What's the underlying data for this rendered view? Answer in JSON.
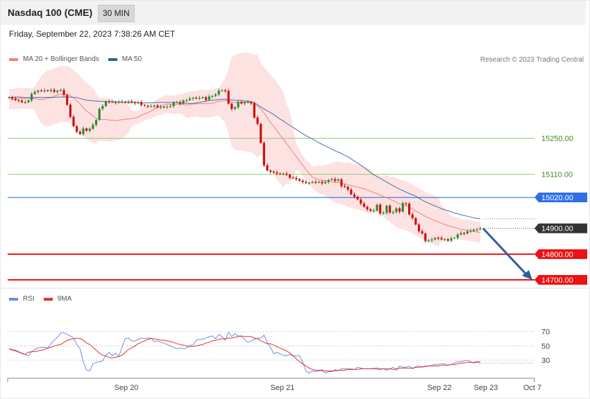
{
  "header": {
    "title": "Nasdaq 100 (CME)",
    "timeframe": "30 MIN"
  },
  "datetime": "Friday, September 22, 2023 7:38:26 AM CET",
  "legend": {
    "ma20": "MA 20 + Bollinger Bands",
    "ma50": "MA 50",
    "credit": "Research © 2023 Trading Central"
  },
  "rsi_legend": {
    "rsi": "RSI",
    "ma": "9MA"
  },
  "colors": {
    "bull": "#2e8b2e",
    "bear": "#cc1111",
    "band_fill": "#fde2e2",
    "ma20": "#f08080",
    "ma50": "#4a6ea9",
    "green_level": "#8ccc6c",
    "blue_level": "#2e6fe8",
    "red_level": "#ee1111",
    "dark_label": "#333333",
    "arrow": "#2e5d9f",
    "rsi": "#6b8fe0",
    "rsi_ma": "#e63030"
  },
  "chart_data": [
    {
      "type": "candlestick",
      "title": "Nasdaq 100 (CME)",
      "ylim": [
        14700,
        15650
      ],
      "x_ticks": [
        "Sep 20",
        "Sep 21",
        "Sep 22",
        "Sep 23",
        "Oct 7"
      ],
      "levels": [
        {
          "label": "15250.00",
          "value": 15250,
          "style": "green-line"
        },
        {
          "label": "15110.00",
          "value": 15110,
          "style": "green-line"
        },
        {
          "label": "15020.00",
          "value": 15020,
          "style": "blue-box"
        },
        {
          "label": "14900.00",
          "value": 14900,
          "style": "dark-box"
        },
        {
          "label": "14800.00",
          "value": 14800,
          "style": "red-box"
        },
        {
          "label": "14700.00",
          "value": 14700,
          "style": "red-box"
        }
      ],
      "close": [
        15409,
        15404,
        15398,
        15396,
        15390,
        15390,
        15397,
        15422,
        15430,
        15435,
        15434,
        15436,
        15434,
        15438,
        15430,
        15435,
        15437,
        15418,
        15380,
        15333,
        15297,
        15275,
        15266,
        15288,
        15279,
        15287,
        15302,
        15321,
        15364,
        15375,
        15393,
        15391,
        15391,
        15388,
        15392,
        15392,
        15390,
        15393,
        15390,
        15386,
        15390,
        15379,
        15376,
        15374,
        15374,
        15377,
        15370,
        15372,
        15371,
        15373,
        15375,
        15390,
        15390,
        15384,
        15397,
        15398,
        15404,
        15407,
        15405,
        15407,
        15409,
        15399,
        15412,
        15414,
        15420,
        15435,
        15436,
        15434,
        15384,
        15364,
        15370,
        15391,
        15385,
        15389,
        15391,
        15386,
        15330,
        15306,
        15232,
        15145,
        15125,
        15120,
        15117,
        15113,
        15112,
        15112,
        15108,
        15097,
        15096,
        15091,
        15085,
        15080,
        15076,
        15077,
        15080,
        15079,
        15081,
        15075,
        15080,
        15088,
        15091,
        15085,
        15090,
        15064,
        15061,
        15051,
        15032,
        15023,
        15012,
        14996,
        14984,
        14974,
        14968,
        14969,
        14992,
        14958,
        14960,
        14988,
        14961,
        14963,
        14978,
        14965,
        14998,
        14996,
        14954,
        14940,
        14915,
        14889,
        14880,
        14851,
        14853,
        14857,
        14863,
        14862,
        14857,
        14858,
        14852,
        14862,
        14863,
        14876,
        14882,
        14880,
        14889,
        14890,
        14895,
        14896,
        14900
      ],
      "ma20": [
        15402,
        15402,
        15403,
        15405,
        15405,
        15405,
        15404,
        15404,
        15404,
        15401,
        15400,
        15402,
        15406,
        15407,
        15413,
        15418,
        15422,
        15421,
        15421,
        15416,
        15406,
        15395,
        15383,
        15369,
        15356,
        15347,
        15337,
        15328,
        15324,
        15322,
        15323,
        15321,
        15320,
        15318,
        15320,
        15322,
        15324,
        15325,
        15326,
        15329,
        15332,
        15340,
        15345,
        15350,
        15356,
        15363,
        15370,
        15375,
        15380,
        15383,
        15382,
        15380,
        15382,
        15383,
        15381,
        15379,
        15381,
        15383,
        15384,
        15384,
        15385,
        15384,
        15384,
        15386,
        15390,
        15393,
        15394,
        15396,
        15394,
        15391,
        15389,
        15390,
        15390,
        15391,
        15390,
        15387,
        15381,
        15375,
        15364,
        15348,
        15330,
        15311,
        15297,
        15279,
        15262,
        15246,
        15229,
        15212,
        15195,
        15178,
        15162,
        15145,
        15128,
        15113,
        15098,
        15094,
        15090,
        15087,
        15085,
        15083,
        15081,
        15079,
        15078,
        15075,
        15073,
        15070,
        15066,
        15063,
        15060,
        15057,
        15054,
        15049,
        15044,
        15039,
        15035,
        15029,
        15024,
        15019,
        15013,
        15008,
        15001,
        14995,
        14991,
        14988,
        14983,
        14975,
        14967,
        14961,
        14954,
        14946,
        14940,
        14935,
        14930,
        14925,
        14920,
        14915,
        14911,
        14907,
        14904,
        14900,
        14896,
        14894,
        14893,
        14891,
        14888,
        14886,
        14884
      ],
      "ma50": [
        15409,
        15409,
        15410,
        15410,
        15409,
        15408,
        15408,
        15408,
        15408,
        15409,
        15408,
        15408,
        15409,
        15409,
        15409,
        15410,
        15410,
        15410,
        15410,
        15410,
        15409,
        15408,
        15404,
        15401,
        15398,
        15397,
        15395,
        15395,
        15393,
        15393,
        15392,
        15392,
        15392,
        15391,
        15390,
        15390,
        15389,
        15389,
        15388,
        15389,
        15388,
        15387,
        15387,
        15387,
        15388,
        15388,
        15389,
        15389,
        15389,
        15389,
        15389,
        15389,
        15388,
        15386,
        15386,
        15386,
        15385,
        15385,
        15387,
        15389,
        15392,
        15394,
        15396,
        15398,
        15399,
        15400,
        15401,
        15402,
        15400,
        15399,
        15398,
        15397,
        15397,
        15395,
        15393,
        15392,
        15388,
        15380,
        15372,
        15364,
        15356,
        15350,
        15342,
        15333,
        15324,
        15317,
        15308,
        15300,
        15292,
        15284,
        15276,
        15268,
        15260,
        15253,
        15247,
        15240,
        15233,
        15226,
        15220,
        15214,
        15208,
        15201,
        15196,
        15191,
        15184,
        15178,
        15170,
        15161,
        15153,
        15145,
        15136,
        15127,
        15117,
        15108,
        15101,
        15094,
        15087,
        15080,
        15073,
        15065,
        15059,
        15052,
        15047,
        15041,
        15035,
        15031,
        15025,
        15017,
        15010,
        15003,
        14998,
        14992,
        14987,
        14982,
        14976,
        14972,
        14968,
        14964,
        14960,
        14957,
        14953,
        14950,
        14947,
        14944,
        14941,
        14939,
        14937
      ]
    },
    {
      "type": "line",
      "title": "RSI",
      "ylim": [
        0,
        100
      ],
      "y_ticks": [
        70,
        50,
        30
      ],
      "series": [
        {
          "name": "RSI",
          "values": [
            46,
            45,
            44,
            42,
            39,
            38,
            36,
            42,
            45,
            47,
            48,
            48,
            47,
            53,
            58,
            62,
            68,
            68,
            66,
            64,
            61,
            52,
            46,
            28,
            16,
            15,
            25,
            27,
            28,
            29,
            37,
            41,
            36,
            40,
            35,
            48,
            60,
            61,
            57,
            57,
            59,
            61,
            60,
            61,
            61,
            56,
            57,
            55,
            54,
            52,
            50,
            48,
            46,
            47,
            46,
            47,
            51,
            51,
            58,
            59,
            59,
            61,
            63,
            64,
            60,
            66,
            63,
            58,
            69,
            63,
            67,
            64,
            63,
            59,
            55,
            57,
            59,
            61,
            61,
            65,
            55,
            48,
            39,
            41,
            39,
            37,
            36,
            38,
            36,
            36,
            36,
            27,
            15,
            12,
            15,
            14,
            15,
            17,
            12,
            14,
            14,
            17,
            15,
            18,
            18,
            18,
            18,
            17,
            20,
            19,
            18,
            18,
            18,
            19,
            17,
            17,
            18,
            16,
            18,
            20,
            16,
            22,
            20,
            20,
            22,
            18,
            21,
            22,
            20,
            22,
            22,
            23,
            24,
            24,
            25,
            25,
            23,
            24,
            26,
            28,
            28,
            29,
            30,
            28,
            26,
            27,
            26
          ]
        },
        {
          "name": "9MA",
          "values": [
            46,
            44,
            43,
            41,
            40,
            38,
            41,
            42,
            42,
            43,
            44,
            45,
            47,
            48,
            50,
            51,
            52,
            55,
            58,
            59,
            60,
            61,
            60,
            58,
            54,
            52,
            48,
            44,
            40,
            37,
            36,
            34,
            33,
            34,
            35,
            37,
            41,
            45,
            47,
            50,
            53,
            55,
            57,
            59,
            60,
            60,
            59,
            58,
            58,
            57,
            56,
            55,
            53,
            52,
            51,
            50,
            49,
            49,
            50,
            51,
            52,
            54,
            55,
            57,
            58,
            59,
            60,
            60,
            61,
            61,
            62,
            63,
            64,
            63,
            63,
            63,
            61,
            60,
            57,
            55,
            53,
            53,
            51,
            49,
            47,
            45,
            43,
            40,
            36,
            32,
            28,
            25,
            22,
            19,
            17,
            16,
            16,
            15,
            15,
            15,
            15,
            15,
            16,
            16,
            16,
            17,
            17,
            17,
            17,
            18,
            18,
            18,
            18,
            18,
            19,
            18,
            18,
            18,
            18,
            17,
            18,
            19,
            19,
            19,
            19,
            19,
            20,
            20,
            21,
            21,
            22,
            22,
            22,
            22,
            23,
            23,
            23,
            24,
            24,
            25,
            26,
            26,
            27,
            27,
            27,
            28,
            28
          ]
        }
      ]
    }
  ]
}
